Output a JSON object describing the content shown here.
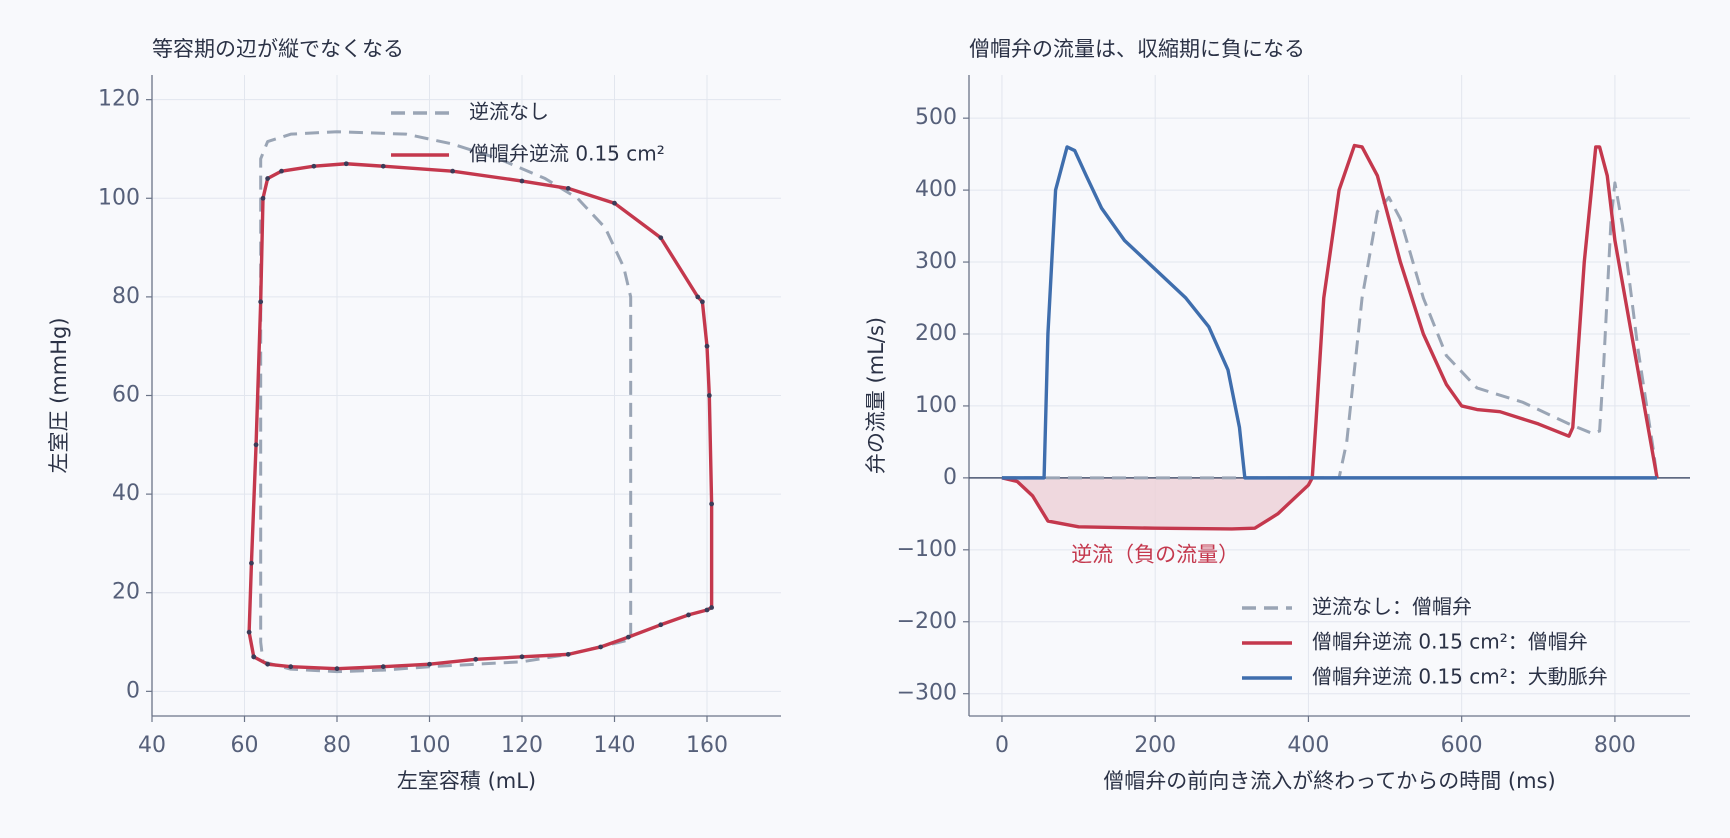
{
  "chart_data": [
    {
      "type": "line",
      "title": "等容期の辺が縦でなくなる",
      "xlabel": "左室容積 (mL)",
      "ylabel": "左室圧 (mmHg)",
      "xlim": [
        40,
        176
      ],
      "ylim": [
        -5,
        125
      ],
      "xticks": [
        40,
        60,
        80,
        100,
        120,
        140,
        160
      ],
      "yticks": [
        0,
        20,
        40,
        60,
        80,
        100,
        120
      ],
      "grid": true,
      "legend": "upper center",
      "series": [
        {
          "name": "逆流なし",
          "color": "#9aa5b5",
          "dash": true,
          "marker": false,
          "x": [
            64,
            70,
            80,
            90,
            100,
            110,
            120,
            130,
            143.5,
            143.5,
            143.5,
            142,
            138,
            132,
            125,
            115,
            105,
            95,
            80,
            70,
            65,
            63.5,
            63.5,
            63.5,
            63.5,
            63.5,
            64
          ],
          "values": [
            6,
            4.5,
            4,
            4.3,
            5,
            5.5,
            6,
            7.5,
            10.5,
            50,
            80,
            86,
            94,
            100,
            104,
            108,
            111,
            113,
            113.5,
            113,
            111.5,
            108,
            100,
            80,
            40,
            10,
            6
          ]
        },
        {
          "name": "僧帽弁逆流 0.15 cm²",
          "color": "#c4384d",
          "dash": false,
          "marker": true,
          "x": [
            62,
            65,
            70,
            80,
            90,
            100,
            110,
            120,
            130,
            137,
            143,
            150,
            156,
            160,
            161,
            161,
            160.5,
            160,
            159,
            158,
            150,
            140,
            130,
            120,
            105,
            90,
            82,
            75,
            68,
            65,
            64,
            63.5,
            62.5,
            61.5,
            61,
            62
          ],
          "values": [
            7,
            5.5,
            5,
            4.6,
            5,
            5.5,
            6.5,
            7,
            7.5,
            9,
            11,
            13.5,
            15.5,
            16.5,
            17,
            38,
            60,
            70,
            79,
            80,
            92,
            99,
            102,
            103.5,
            105.5,
            106.5,
            107,
            106.5,
            105.5,
            104,
            100,
            79,
            50,
            26,
            12,
            7
          ]
        }
      ]
    },
    {
      "type": "line",
      "title": "僧帽弁の流量は、収縮期に負になる",
      "xlabel": "僧帽弁の前向き流入が終わってからの時間 (ms)",
      "ylabel": "弁の流量 (mL/s)",
      "xlim": [
        -43,
        898
      ],
      "ylim": [
        -331,
        560
      ],
      "xticks": [
        0,
        200,
        400,
        600,
        800
      ],
      "yticks": [
        {
          "value": -300,
          "label": "−300"
        },
        {
          "value": -200,
          "label": "−200"
        },
        {
          "value": -100,
          "label": "−100"
        },
        0,
        100,
        200,
        300,
        400,
        500
      ],
      "grid": true,
      "legend": "lower right",
      "axhline": 0,
      "annotation": {
        "text": "逆流（負の流量）",
        "x": 200,
        "y": -108,
        "color": "#c4384d"
      },
      "series": [
        {
          "name": "逆流なし：僧帽弁",
          "color": "#9aa5b5",
          "dash": true,
          "fill_negative": false,
          "x": [
            0,
            100,
            200,
            300,
            400,
            440,
            450,
            470,
            490,
            505,
            520,
            550,
            580,
            620,
            680,
            740,
            770,
            780,
            785,
            795,
            800,
            810,
            830,
            850,
            855
          ],
          "values": [
            0,
            0,
            0,
            0,
            0,
            0,
            50,
            250,
            370,
            390,
            360,
            250,
            170,
            125,
            105,
            75,
            62,
            65,
            150,
            360,
            410,
            350,
            180,
            40,
            0
          ]
        },
        {
          "name": "僧帽弁逆流 0.15 cm²：僧帽弁",
          "color": "#c4384d",
          "dash": false,
          "fill_negative": true,
          "fill": "#ecd0d6",
          "x": [
            0,
            20,
            40,
            60,
            100,
            200,
            300,
            330,
            360,
            400,
            405,
            410,
            420,
            440,
            460,
            470,
            490,
            520,
            550,
            580,
            600,
            620,
            650,
            700,
            740,
            745,
            760,
            775,
            780,
            790,
            800,
            830,
            850,
            855
          ],
          "values": [
            0,
            -5,
            -25,
            -60,
            -68,
            -70,
            -71,
            -70,
            -50,
            -10,
            0,
            80,
            250,
            400,
            462,
            460,
            420,
            300,
            200,
            130,
            100,
            95,
            92,
            75,
            58,
            70,
            300,
            460,
            460,
            420,
            330,
            150,
            30,
            0
          ]
        },
        {
          "name": "僧帽弁逆流 0.15 cm²：大動脈弁",
          "color": "#3f6ead",
          "dash": false,
          "fill_negative": false,
          "x": [
            0,
            55,
            60,
            70,
            85,
            95,
            110,
            130,
            160,
            200,
            240,
            270,
            295,
            310,
            317,
            400,
            855
          ],
          "values": [
            0,
            0,
            200,
            400,
            460,
            455,
            420,
            375,
            330,
            290,
            250,
            210,
            150,
            70,
            0,
            0,
            0
          ]
        }
      ]
    }
  ]
}
